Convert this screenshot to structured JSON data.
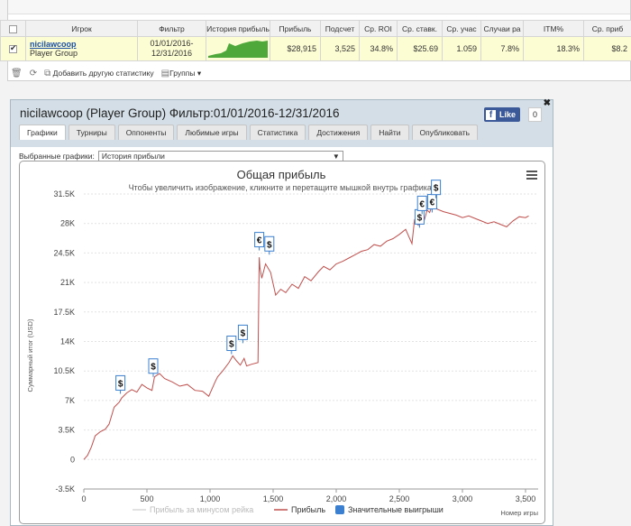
{
  "table": {
    "headers": [
      "Игрок",
      "Фильтр",
      "История прибыль",
      "Прибыль",
      "Подсчет",
      "Ср. ROI",
      "Ср. ставк.",
      "Ср. учас",
      "Случаи ра",
      "ITM%",
      "Ср. приб"
    ],
    "row": {
      "player_name": "nicilawcoop",
      "player_group": "Player Group",
      "filter": "01/01/2016-12/31/2016",
      "profit": "$28,915",
      "count": "3,525",
      "roi": "34.8%",
      "avg_stake": "$25.69",
      "avg_entrants": "1.059",
      "cases": "7.8%",
      "itm": "18.3%",
      "avg_profit": "$8.2"
    }
  },
  "toolbar": {
    "add_label": "Добавить другую статистику",
    "groups_label": "Группы"
  },
  "window": {
    "title": "nicilawcoop (Player Group) Фильтр:01/01/2016-12/31/2016",
    "like_label": "Like",
    "like_count": "0",
    "tabs": [
      "Графики",
      "Турниры",
      "Оппоненты",
      "Любимые игры",
      "Статистика",
      "Достижения",
      "Найти",
      "Опубликовать"
    ],
    "filter_label": "Выбранные графики:",
    "filter_value": "История прибыли"
  },
  "colors": {
    "line": "#c0504d",
    "marker_border": "#3b7fd0",
    "marker_bg": "#ffffff"
  },
  "chart_data": {
    "type": "line",
    "title": "Общая прибыль",
    "subtitle": "Чтобы увеличить изображение, кликните и перетащите мышкой внутрь графика.",
    "ylabel": "Суммарный итог (USD)",
    "xlabel": "Номер игры",
    "ylim": [
      -3500,
      31500
    ],
    "xlim": [
      0,
      3525
    ],
    "y_ticks": [
      "-3.5K",
      "0",
      "3.5K",
      "7K",
      "10.5K",
      "14K",
      "17.5K",
      "21K",
      "24.5K",
      "28K",
      "31.5K"
    ],
    "y_tick_values": [
      -3500,
      0,
      3500,
      7000,
      10500,
      14000,
      17500,
      21000,
      24500,
      28000,
      31500
    ],
    "x_ticks": [
      "0",
      "500",
      "1,000",
      "1,500",
      "2,000",
      "2,500",
      "3,000",
      "3,500"
    ],
    "x_tick_values": [
      0,
      500,
      1000,
      1500,
      2000,
      2500,
      3000,
      3500
    ],
    "grid": true,
    "legend": [
      "Прибыль за минусом рейка",
      "Прибыль",
      "Значительные выигрыши"
    ],
    "legend_placement": "bottom-center",
    "series": [
      {
        "name": "Прибыль",
        "x": [
          0,
          30,
          60,
          90,
          130,
          170,
          200,
          240,
          280,
          300,
          340,
          380,
          420,
          460,
          500,
          540,
          560,
          600,
          640,
          700,
          760,
          820,
          880,
          940,
          990,
          1040,
          1060,
          1100,
          1150,
          1180,
          1210,
          1240,
          1270,
          1290,
          1330,
          1380,
          1390,
          1395,
          1410,
          1440,
          1480,
          1520,
          1560,
          1600,
          1650,
          1700,
          1750,
          1800,
          1860,
          1900,
          1950,
          2000,
          2050,
          2100,
          2150,
          2200,
          2250,
          2300,
          2350,
          2400,
          2450,
          2500,
          2550,
          2600,
          2620,
          2650,
          2680,
          2700,
          2720,
          2740,
          2760,
          2780,
          2800,
          2850,
          2900,
          2950,
          3000,
          3050,
          3100,
          3150,
          3200,
          3250,
          3300,
          3350,
          3400,
          3450,
          3500,
          3525
        ],
        "values": [
          0,
          500,
          1500,
          2800,
          3300,
          3600,
          4200,
          6200,
          6800,
          7300,
          7900,
          8300,
          8000,
          8900,
          8500,
          8200,
          9800,
          10200,
          9600,
          9200,
          8700,
          8900,
          8200,
          8100,
          7500,
          9200,
          9800,
          10500,
          11500,
          12300,
          11700,
          11200,
          12000,
          11100,
          11300,
          11500,
          24000,
          22800,
          21500,
          23200,
          22200,
          19500,
          20200,
          19800,
          20800,
          20300,
          21700,
          21200,
          22300,
          22900,
          22500,
          23200,
          23500,
          23900,
          24300,
          24700,
          24900,
          25500,
          25300,
          25900,
          26200,
          26700,
          27300,
          25600,
          28400,
          27800,
          29100,
          28500,
          29600,
          29300,
          30100,
          30400,
          29700,
          29400,
          29200,
          29000,
          28700,
          28900,
          28600,
          28300,
          28000,
          28200,
          27900,
          27600,
          28300,
          28800,
          28700,
          28900
        ]
      }
    ],
    "big_wins": [
      {
        "x": 290,
        "y": 7800,
        "symbol": "$"
      },
      {
        "x": 550,
        "y": 9800,
        "symbol": "$"
      },
      {
        "x": 1170,
        "y": 12500,
        "symbol": "$"
      },
      {
        "x": 1260,
        "y": 13800,
        "symbol": "$"
      },
      {
        "x": 1390,
        "y": 24800,
        "symbol": "€"
      },
      {
        "x": 1470,
        "y": 24300,
        "symbol": "$"
      },
      {
        "x": 2660,
        "y": 27500,
        "symbol": "$"
      },
      {
        "x": 2680,
        "y": 29100,
        "symbol": "€"
      },
      {
        "x": 2760,
        "y": 29300,
        "symbol": "€"
      },
      {
        "x": 2790,
        "y": 31000,
        "symbol": "$"
      }
    ]
  }
}
